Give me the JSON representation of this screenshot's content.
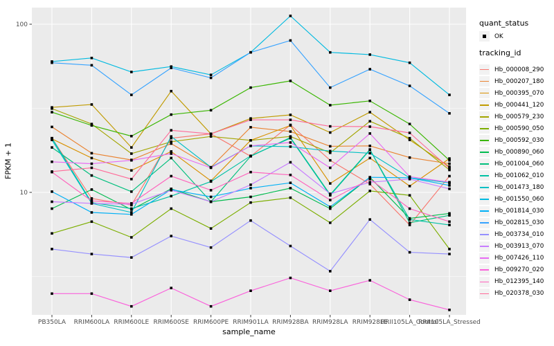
{
  "legend": {
    "quant_status_title": "quant_status",
    "ok_label": "OK",
    "tracking_title": "tracking_id",
    "key_bg": "#F2F2F2",
    "marker_color": "#000000"
  },
  "chart_data": {
    "type": "line",
    "title": "",
    "xlabel": "sample_name",
    "ylabel": "FPKM + 1",
    "y_scale": "log10",
    "ylim": [
      1.87,
      125
    ],
    "y_ticks": [
      10,
      100
    ],
    "y_minor_ticks": [
      3.162,
      31.62
    ],
    "grid": true,
    "legend_position": "right",
    "panel_bg": "#EBEBEB",
    "grid_color": "#FFFFFF",
    "point_shape": "filled-square",
    "point_color": "#000000",
    "axis_text_color": "#4D4D4D",
    "tick_color": "#333333",
    "quant_status_all": "OK",
    "categories": [
      "PB350LA",
      "RRIM600LA",
      "RRIM600LE",
      "RRIM600SE",
      "RRIM600PE",
      "RRIM901LA",
      "RRIM928BA",
      "RRIM928LA",
      "RRIM928LE",
      "RRII105LA_Control",
      "RRII105LA_Stressed"
    ],
    "series": [
      {
        "name": "Hb_000008_290",
        "color": "#F8766D",
        "values": [
          21,
          9.2,
          8.4,
          21,
          22.3,
          16.4,
          25.2,
          15.5,
          11.2,
          6.4,
          12.5
        ]
      },
      {
        "name": "Hb_000207_180",
        "color": "#EA8331",
        "values": [
          24.5,
          17.1,
          15.6,
          19.5,
          14.1,
          24.4,
          23,
          18.8,
          18.9,
          16.1,
          14.8
        ]
      },
      {
        "name": "Hb_000395_070",
        "color": "#D89000",
        "values": [
          20.8,
          16,
          13.5,
          17.5,
          11.7,
          20.4,
          25,
          11.3,
          16,
          10.9,
          15.9
        ]
      },
      {
        "name": "Hb_000441_120",
        "color": "#C09B00",
        "values": [
          32,
          33.3,
          18.5,
          40,
          22.3,
          27.5,
          28.9,
          22.7,
          30,
          20.5,
          14.2
        ]
      },
      {
        "name": "Hb_000579_230",
        "color": "#A3A500",
        "values": [
          31.5,
          25.5,
          17,
          20,
          21.5,
          20.4,
          21.5,
          17.2,
          26.5,
          21,
          13.6
        ]
      },
      {
        "name": "Hb_000590_050",
        "color": "#7CAE00",
        "values": [
          5.7,
          6.7,
          5.4,
          8,
          6.1,
          8.7,
          9.3,
          6.6,
          10.2,
          9.6,
          4.6
        ]
      },
      {
        "name": "Hb_000592_030",
        "color": "#39B600",
        "values": [
          30,
          25,
          21.6,
          29,
          30.8,
          42,
          46,
          33,
          35,
          25.5,
          15.5
        ]
      },
      {
        "name": "Hb_000890_060",
        "color": "#00BB4E",
        "values": [
          8,
          10.4,
          7.9,
          10.5,
          8.8,
          9.4,
          10.6,
          8,
          12.3,
          7,
          7.5
        ]
      },
      {
        "name": "Hb_001004_060",
        "color": "#00BF7D",
        "values": [
          18.5,
          12.6,
          10.1,
          16,
          8.8,
          16.4,
          21.2,
          9.7,
          18,
          6.6,
          7.3
        ]
      },
      {
        "name": "Hb_001062_010",
        "color": "#00C1A3",
        "values": [
          21,
          8.7,
          8,
          9.5,
          11.6,
          16.5,
          21,
          9.6,
          17.9,
          6.9,
          6.4
        ]
      },
      {
        "name": "Hb_001473_180",
        "color": "#00BFC4",
        "values": [
          20.5,
          8.6,
          7.6,
          21.5,
          14.1,
          18.9,
          18.7,
          17.6,
          17.1,
          12.2,
          11.4
        ]
      },
      {
        "name": "Hb_001550_060",
        "color": "#00BAE0",
        "values": [
          60,
          63,
          52,
          56,
          50,
          68,
          112,
          68,
          66,
          59,
          38
        ]
      },
      {
        "name": "Hb_001814_030",
        "color": "#00B0F6",
        "values": [
          10.1,
          7.6,
          7.4,
          10.4,
          9.4,
          10.6,
          11.4,
          8.2,
          12.3,
          12.2,
          11
        ]
      },
      {
        "name": "Hb_002815_030",
        "color": "#35A2FF",
        "values": [
          59,
          57,
          38,
          55,
          48,
          68,
          80,
          42,
          54,
          43,
          29.5
        ]
      },
      {
        "name": "Hb_003734_010",
        "color": "#9590FF",
        "values": [
          4.6,
          4.3,
          4.1,
          5.5,
          4.7,
          6.8,
          4.8,
          3.4,
          6.9,
          4.4,
          4.3
        ]
      },
      {
        "name": "Hb_003913_070",
        "color": "#C77CFF",
        "values": [
          8.8,
          8.6,
          8.5,
          10.3,
          8.8,
          11.1,
          15.1,
          9.8,
          11.5,
          12,
          10.5
        ]
      },
      {
        "name": "Hb_007426_110",
        "color": "#E76BF3",
        "values": [
          15.2,
          14.8,
          15.5,
          17,
          14,
          18.9,
          19.8,
          14,
          22.4,
          12.4,
          11.5
        ]
      },
      {
        "name": "Hb_009270_020",
        "color": "#FA62DB",
        "values": [
          2.5,
          2.5,
          2.1,
          2.7,
          2.1,
          2.6,
          3.1,
          2.6,
          3,
          2.3,
          2
        ]
      },
      {
        "name": "Hb_012395_140",
        "color": "#FF62BC",
        "values": [
          13.2,
          8.9,
          8.6,
          12.5,
          10.3,
          13.2,
          12.7,
          9,
          12,
          8,
          6.7
        ]
      },
      {
        "name": "Hb_020378_030",
        "color": "#FF6A98",
        "values": [
          13.3,
          14,
          12,
          23.4,
          22.3,
          27,
          27,
          24.7,
          24.6,
          22.6,
          13.9
        ]
      }
    ]
  }
}
